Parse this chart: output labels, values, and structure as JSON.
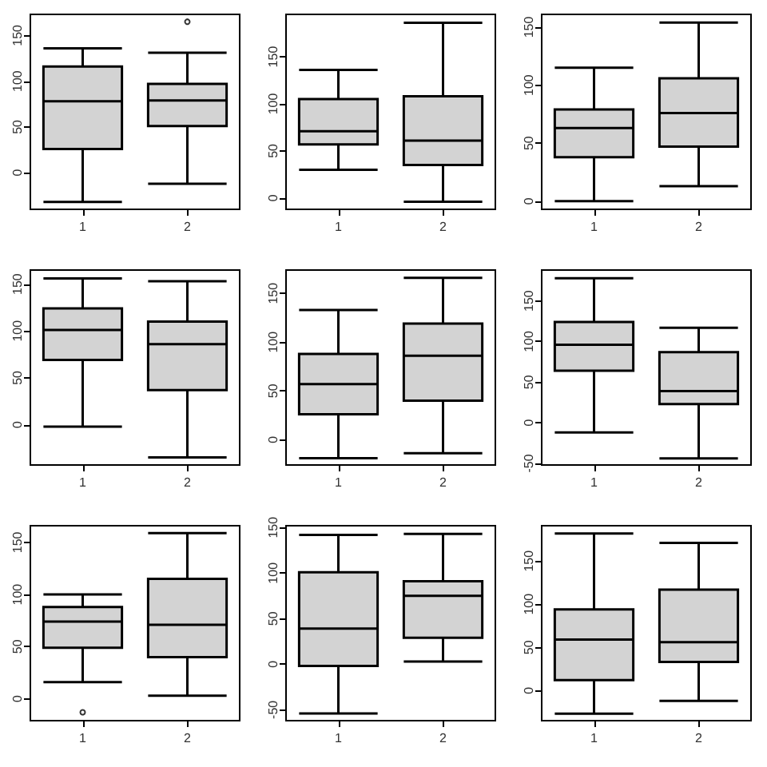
{
  "chart_data": [
    {
      "type": "box",
      "categories": [
        "1",
        "2"
      ],
      "ylim": [
        -40,
        173
      ],
      "yticks": [
        0,
        50,
        100,
        150
      ],
      "series": [
        {
          "color": "#d3d3d3",
          "boxes": [
            {
              "low": -32,
              "q1": 26,
              "median": 78,
              "q3": 116,
              "high": 136
            },
            {
              "low": -12,
              "q1": 51,
              "median": 79,
              "q3": 97,
              "high": 131,
              "outliers": [
                165
              ]
            }
          ]
        }
      ]
    },
    {
      "type": "box",
      "categories": [
        "1",
        "2"
      ],
      "ylim": [
        -12,
        195
      ],
      "yticks": [
        0,
        50,
        100,
        150
      ],
      "series": [
        {
          "color": "#d3d3d3",
          "boxes": [
            {
              "low": 30,
              "q1": 57,
              "median": 71,
              "q3": 105,
              "high": 136
            },
            {
              "low": -4,
              "q1": 35,
              "median": 61,
              "q3": 108,
              "high": 186
            }
          ]
        }
      ]
    },
    {
      "type": "box",
      "categories": [
        "1",
        "2"
      ],
      "ylim": [
        -7,
        161
      ],
      "yticks": [
        0,
        50,
        100,
        150
      ],
      "series": [
        {
          "color": "#d3d3d3",
          "boxes": [
            {
              "low": 0,
              "q1": 38,
              "median": 63,
              "q3": 79,
              "high": 115
            },
            {
              "low": 13,
              "q1": 47,
              "median": 76,
              "q3": 106,
              "high": 154
            }
          ]
        }
      ]
    },
    {
      "type": "box",
      "categories": [
        "1",
        "2"
      ],
      "ylim": [
        -43,
        165
      ],
      "yticks": [
        0,
        50,
        100,
        150
      ],
      "series": [
        {
          "color": "#d3d3d3",
          "boxes": [
            {
              "low": -2,
              "q1": 69,
              "median": 101,
              "q3": 124,
              "high": 156
            },
            {
              "low": -35,
              "q1": 37,
              "median": 86,
              "q3": 110,
              "high": 153
            }
          ]
        }
      ]
    },
    {
      "type": "box",
      "categories": [
        "1",
        "2"
      ],
      "ylim": [
        -26,
        174
      ],
      "yticks": [
        0,
        50,
        100,
        150
      ],
      "series": [
        {
          "color": "#d3d3d3",
          "boxes": [
            {
              "low": -19,
              "q1": 26,
              "median": 57,
              "q3": 88,
              "high": 133
            },
            {
              "low": -14,
              "q1": 40,
              "median": 86,
              "q3": 119,
              "high": 166
            }
          ]
        }
      ]
    },
    {
      "type": "box",
      "categories": [
        "1",
        "2"
      ],
      "ylim": [
        -52,
        188
      ],
      "yticks": [
        -50,
        0,
        50,
        100,
        150
      ],
      "series": [
        {
          "color": "#d3d3d3",
          "boxes": [
            {
              "low": -12,
              "q1": 64,
              "median": 96,
              "q3": 124,
              "high": 178
            },
            {
              "low": -44,
              "q1": 23,
              "median": 39,
              "q3": 87,
              "high": 117
            }
          ]
        }
      ]
    },
    {
      "type": "box",
      "categories": [
        "1",
        "2"
      ],
      "ylim": [
        -21,
        166
      ],
      "yticks": [
        0,
        50,
        100,
        150
      ],
      "series": [
        {
          "color": "#d3d3d3",
          "boxes": [
            {
              "low": 16,
              "q1": 49,
              "median": 74,
              "q3": 88,
              "high": 100,
              "outliers": [
                -13
              ]
            },
            {
              "low": 3,
              "q1": 40,
              "median": 71,
              "q3": 115,
              "high": 159
            }
          ]
        }
      ]
    },
    {
      "type": "box",
      "categories": [
        "1",
        "2"
      ],
      "ylim": [
        -62,
        152
      ],
      "yticks": [
        -50,
        0,
        50,
        100,
        150
      ],
      "series": [
        {
          "color": "#d3d3d3",
          "boxes": [
            {
              "low": -54,
              "q1": -2,
              "median": 39,
              "q3": 101,
              "high": 142
            },
            {
              "low": 3,
              "q1": 29,
              "median": 75,
              "q3": 91,
              "high": 143
            }
          ]
        }
      ]
    },
    {
      "type": "box",
      "categories": [
        "1",
        "2"
      ],
      "ylim": [
        -35,
        191
      ],
      "yticks": [
        0,
        50,
        100,
        150
      ],
      "series": [
        {
          "color": "#d3d3d3",
          "boxes": [
            {
              "low": -27,
              "q1": 12,
              "median": 59,
              "q3": 94,
              "high": 182
            },
            {
              "low": -12,
              "q1": 33,
              "median": 56,
              "q3": 117,
              "high": 171
            }
          ]
        }
      ]
    }
  ]
}
